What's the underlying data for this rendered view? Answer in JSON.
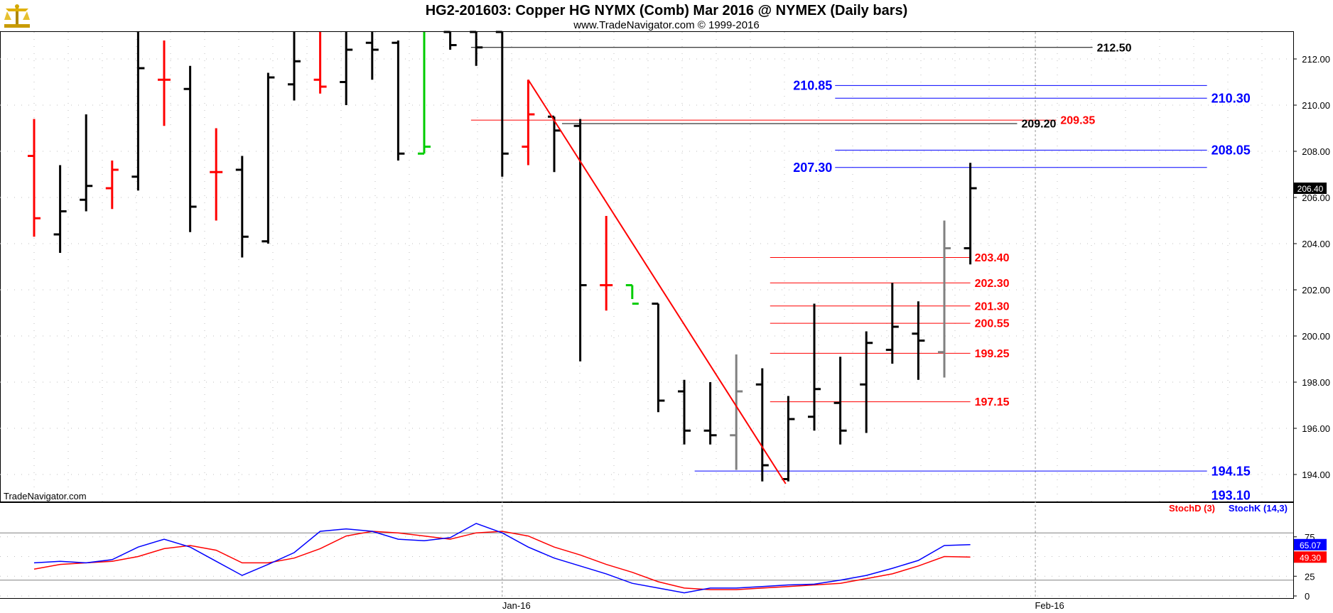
{
  "colors": {
    "up": "#000000",
    "down": "#ff0000",
    "gray": "#808080",
    "green": "#00cc00",
    "blue": "#0000ff",
    "red": "#ff0000",
    "black": "#000000",
    "grid": "#bfbfbf"
  },
  "icons": {
    "logo": "trade-navigator-logo-icon"
  },
  "chart_data": {
    "type": "ohlc",
    "title": "HG2-201603:  Copper HG NYMX (Comb) Mar 2016 @ NYMEX  (Daily bars)",
    "subtitle": "www.TradeNavigator.com © 1999-2016",
    "watermark": "TradeNavigator.com",
    "price_panel": {
      "ylim": [
        192.8,
        213.2
      ],
      "y_ticks": [
        "212.00",
        "210.00",
        "208.00",
        "206.00",
        "204.00",
        "202.00",
        "200.00",
        "198.00",
        "196.00",
        "194.00"
      ],
      "y_tick_values": [
        212,
        210,
        208,
        206,
        204,
        202,
        200,
        198,
        196,
        194
      ],
      "last_price": "206.40",
      "last_price_value": 206.4
    },
    "x_labels": [
      "Jan-16",
      "Feb-16"
    ],
    "x_label_index": [
      18,
      38.5
    ],
    "bars": [
      {
        "o": 207.8,
        "h": 209.4,
        "l": 204.3,
        "c": 205.1,
        "color": "down"
      },
      {
        "o": 204.4,
        "h": 207.4,
        "l": 203.6,
        "c": 205.4,
        "color": "up"
      },
      {
        "o": 205.9,
        "h": 209.6,
        "l": 205.4,
        "c": 206.5,
        "color": "up"
      },
      {
        "o": 206.4,
        "h": 207.6,
        "l": 205.5,
        "c": 207.2,
        "color": "down"
      },
      {
        "o": 206.9,
        "h": 213.8,
        "l": 206.3,
        "c": 211.6,
        "color": "up"
      },
      {
        "o": 211.1,
        "h": 212.8,
        "l": 209.1,
        "c": 211.1,
        "color": "down"
      },
      {
        "o": 210.7,
        "h": 211.7,
        "l": 204.5,
        "c": 205.6,
        "color": "up"
      },
      {
        "o": 207.1,
        "h": 209.0,
        "l": 205.0,
        "c": 207.1,
        "color": "down"
      },
      {
        "o": 207.2,
        "h": 207.8,
        "l": 203.4,
        "c": 204.3,
        "color": "up"
      },
      {
        "o": 204.1,
        "h": 211.4,
        "l": 204.0,
        "c": 211.2,
        "color": "up"
      },
      {
        "o": 210.9,
        "h": 213.8,
        "l": 210.2,
        "c": 211.9,
        "color": "up"
      },
      {
        "o": 211.1,
        "h": 213.8,
        "l": 210.5,
        "c": 210.8,
        "color": "down"
      },
      {
        "o": 211.0,
        "h": 213.8,
        "l": 210.0,
        "c": 212.4,
        "color": "up"
      },
      {
        "o": 212.7,
        "h": 213.8,
        "l": 211.1,
        "c": 212.4,
        "color": "up"
      },
      {
        "o": 212.7,
        "h": 212.8,
        "l": 207.6,
        "c": 207.9,
        "color": "up"
      },
      {
        "o": 207.9,
        "h": 213.8,
        "l": 207.9,
        "c": 208.2,
        "color": "green"
      },
      {
        "o": 213.8,
        "h": 213.8,
        "l": 212.4,
        "c": 212.6,
        "color": "up"
      },
      {
        "o": 213.3,
        "h": 213.8,
        "l": 211.7,
        "c": 212.5,
        "color": "up"
      },
      {
        "o": 213.8,
        "h": 213.8,
        "l": 206.9,
        "c": 207.9,
        "color": "up"
      },
      {
        "o": 208.2,
        "h": 211.1,
        "l": 207.4,
        "c": 209.6,
        "color": "down"
      },
      {
        "o": 209.5,
        "h": 209.5,
        "l": 207.1,
        "c": 208.9,
        "color": "up"
      },
      {
        "o": 209.1,
        "h": 209.4,
        "l": 198.9,
        "c": 202.2,
        "color": "up"
      },
      {
        "o": 202.2,
        "h": 205.2,
        "l": 201.1,
        "c": 202.2,
        "color": "down"
      },
      {
        "o": 202.2,
        "h": 202.2,
        "l": 201.6,
        "c": 201.4,
        "color": "green"
      },
      {
        "o": 201.4,
        "h": 201.4,
        "l": 196.7,
        "c": 197.2,
        "color": "up"
      },
      {
        "o": 197.6,
        "h": 198.1,
        "l": 195.3,
        "c": 195.9,
        "color": "up"
      },
      {
        "o": 195.9,
        "h": 198.0,
        "l": 195.3,
        "c": 195.7,
        "color": "up"
      },
      {
        "o": 195.7,
        "h": 199.2,
        "l": 194.2,
        "c": 197.6,
        "color": "gray"
      },
      {
        "o": 197.9,
        "h": 198.6,
        "l": 193.7,
        "c": 194.4,
        "color": "up"
      },
      {
        "o": 193.8,
        "h": 197.4,
        "l": 193.7,
        "c": 196.4,
        "color": "up"
      },
      {
        "o": 196.5,
        "h": 201.4,
        "l": 195.9,
        "c": 197.7,
        "color": "up"
      },
      {
        "o": 197.1,
        "h": 199.1,
        "l": 195.3,
        "c": 195.9,
        "color": "up"
      },
      {
        "o": 197.9,
        "h": 200.2,
        "l": 195.8,
        "c": 199.7,
        "color": "up"
      },
      {
        "o": 199.4,
        "h": 202.3,
        "l": 198.8,
        "c": 200.4,
        "color": "up"
      },
      {
        "o": 200.1,
        "h": 201.5,
        "l": 198.1,
        "c": 199.8,
        "color": "up"
      },
      {
        "o": 199.3,
        "h": 205.0,
        "l": 198.2,
        "c": 203.8,
        "color": "gray"
      },
      {
        "o": 203.8,
        "h": 207.5,
        "l": 203.1,
        "c": 206.4,
        "color": "up"
      }
    ],
    "trendline": {
      "from": [
        19,
        211.1
      ],
      "to": [
        28.9,
        193.6
      ],
      "color": "red"
    },
    "levels": [
      {
        "value": 212.5,
        "label": "212.50",
        "color": "black",
        "from": 16.8,
        "to": 40.7,
        "label_at": "right"
      },
      {
        "value": 210.85,
        "label": "210.85",
        "color": "blue",
        "from": 30.8,
        "to": 45.1,
        "label_at": "left"
      },
      {
        "value": 210.3,
        "label": "210.30",
        "color": "blue",
        "from": 30.8,
        "to": 45.1,
        "label_at": "right"
      },
      {
        "value": 209.35,
        "label": "209.35",
        "color": "red",
        "from": 16.8,
        "to": 39.3,
        "label_at": "right"
      },
      {
        "value": 209.2,
        "label": "209.20",
        "color": "black",
        "from": 20.3,
        "to": 37.8,
        "label_at": "right"
      },
      {
        "value": 208.05,
        "label": "208.05",
        "color": "blue",
        "from": 30.8,
        "to": 45.1,
        "label_at": "right"
      },
      {
        "value": 207.3,
        "label": "207.30",
        "color": "blue",
        "from": 30.8,
        "to": 45.1,
        "label_at": "left"
      },
      {
        "value": 203.4,
        "label": "203.40",
        "color": "red",
        "from": 28.3,
        "to": 36.0,
        "label_at": "right"
      },
      {
        "value": 202.3,
        "label": "202.30",
        "color": "red",
        "from": 28.3,
        "to": 36.0,
        "label_at": "right"
      },
      {
        "value": 201.3,
        "label": "201.30",
        "color": "red",
        "from": 28.3,
        "to": 36.0,
        "label_at": "right"
      },
      {
        "value": 200.55,
        "label": "200.55",
        "color": "red",
        "from": 28.3,
        "to": 36.0,
        "label_at": "right"
      },
      {
        "value": 199.25,
        "label": "199.25",
        "color": "red",
        "from": 28.3,
        "to": 36.0,
        "label_at": "right"
      },
      {
        "value": 197.15,
        "label": "197.15",
        "color": "red",
        "from": 28.3,
        "to": 36.0,
        "label_at": "right"
      },
      {
        "value": 194.15,
        "label": "194.15",
        "color": "blue",
        "from": 25.4,
        "to": 45.1,
        "label_at": "right"
      },
      {
        "value": 193.1,
        "label": "193.10",
        "color": "blue",
        "from": null,
        "to": null,
        "label_at": "right"
      }
    ],
    "stoch_panel": {
      "ylim": [
        0,
        100
      ],
      "y_ticks": [
        "75",
        "50",
        "25",
        "0"
      ],
      "y_tick_values": [
        75,
        50,
        25,
        0
      ],
      "ref_lines": [
        80,
        20
      ],
      "legend": [
        {
          "label": "StochD (3)",
          "color": "red"
        },
        {
          "label": "StochK (14,3)",
          "color": "blue"
        }
      ],
      "stochK": {
        "label": "StochK (14,3)",
        "last": "65.07",
        "values": [
          42,
          44,
          42,
          46,
          62,
          72,
          62,
          44,
          26,
          40,
          55,
          82,
          85,
          82,
          72,
          70,
          74,
          92,
          80,
          62,
          48,
          38,
          28,
          16,
          10,
          4,
          10,
          10,
          12,
          14,
          15,
          20,
          26,
          35,
          45,
          64,
          65.07
        ]
      },
      "stochD": {
        "label": "StochD (3)",
        "last": "49.30",
        "values": [
          34,
          40,
          42,
          44,
          50,
          60,
          64,
          58,
          42,
          42,
          48,
          60,
          76,
          82,
          80,
          76,
          72,
          80,
          82,
          76,
          62,
          52,
          40,
          30,
          18,
          10,
          8,
          8,
          10,
          12,
          14,
          16,
          22,
          28,
          38,
          50,
          49.3
        ]
      }
    }
  }
}
